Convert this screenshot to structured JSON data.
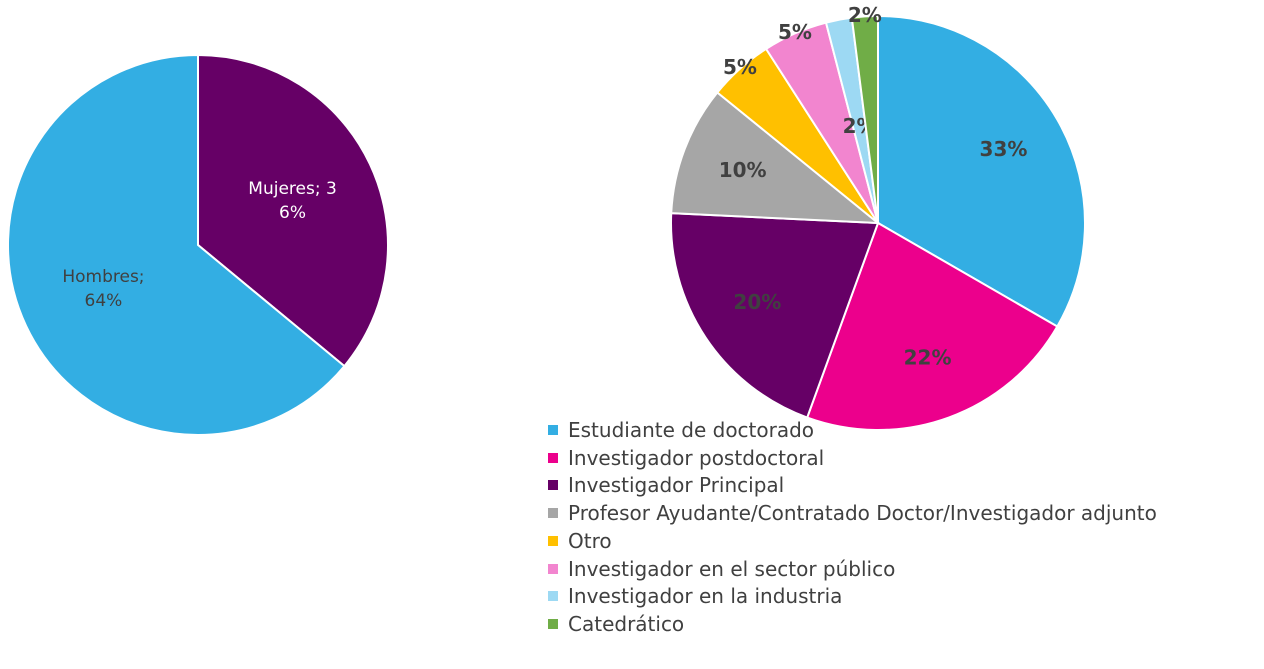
{
  "chart_data": [
    {
      "type": "pie",
      "values": [
        36,
        64
      ],
      "value_labels": [
        "Mujeres; 36%",
        "Hombres; 64%"
      ],
      "colors": [
        "#660066",
        "#33aee3"
      ],
      "label_colors": [
        "#ffffff",
        "#404040"
      ]
    },
    {
      "type": "pie",
      "categories": [
        "Estudiante de doctorado",
        "Investigador postdoctoral",
        "Investigador Principal",
        "Profesor Ayudante/Contratado Doctor/Investigador adjunto",
        "Otro",
        "Investigador en el sector público",
        "Investigador en la industria",
        "Catedrático"
      ],
      "values": [
        33,
        22,
        20,
        10,
        5,
        5,
        2,
        2
      ],
      "value_labels": [
        "33%",
        "22%",
        "20%",
        "10%",
        "5%",
        "5%",
        "2%",
        "2%"
      ],
      "colors": [
        "#33aee3",
        "#ec008c",
        "#660066",
        "#a6a6a6",
        "#ffc000",
        "#f285cf",
        "#9dd9f3",
        "#70ad47"
      ],
      "legend": "bottom"
    }
  ]
}
